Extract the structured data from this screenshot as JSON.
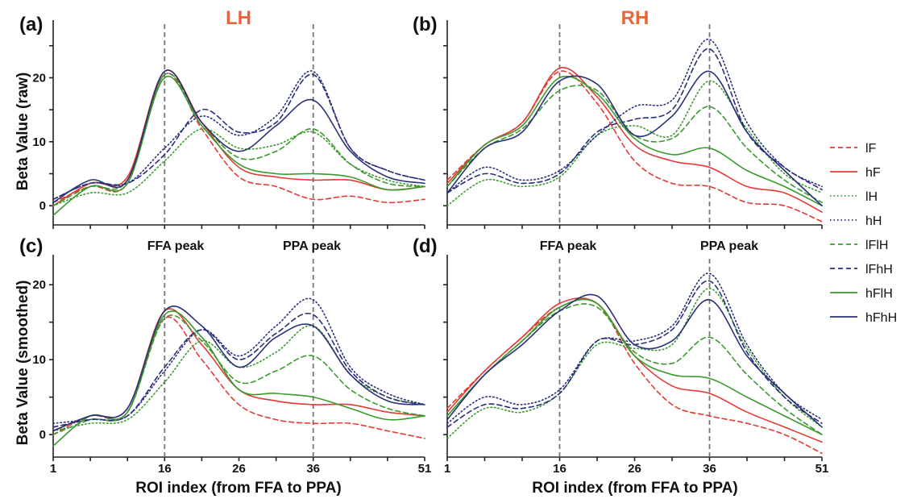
{
  "colors": {
    "hemisphere": "#e8663a",
    "red": "#e53935",
    "green": "#3a9a2e",
    "navy": "#2a2f7a",
    "peak_line": "#777777"
  },
  "hemispheres": {
    "left": "LH",
    "right": "RH"
  },
  "ylabels": {
    "raw": "Beta Value (raw)",
    "smoothed": "Beta Value (smoothed)"
  },
  "xlabel": "ROI index (from FFA to PPA)",
  "peak_labels": {
    "ffa": "FFA peak",
    "ppa": "PPA peak"
  },
  "legend": [
    {
      "name": "lF",
      "color": "#e53935",
      "dash": "6 4"
    },
    {
      "name": "hF",
      "color": "#e53935",
      "dash": ""
    },
    {
      "name": "lH",
      "color": "#3a9a2e",
      "dash": "1.5 3"
    },
    {
      "name": "hH",
      "color": "#2a2f7a",
      "dash": "1.5 3"
    },
    {
      "name": "lFlH",
      "color": "#3a9a2e",
      "dash": "6 4"
    },
    {
      "name": "lFhH",
      "color": "#2a2f7a",
      "dash": "6 4"
    },
    {
      "name": "hFlH",
      "color": "#3a9a2e",
      "dash": ""
    },
    {
      "name": "hFhH",
      "color": "#2a2f7a",
      "dash": ""
    }
  ],
  "chart_data": [
    {
      "type": "line",
      "panel": "(a)",
      "hemisphere": "LH",
      "ylabel": "Beta Value (raw)",
      "x": [
        1,
        6,
        11,
        16,
        21,
        26,
        31,
        36,
        41,
        46,
        51
      ],
      "xticks": [],
      "yticks": [
        0,
        10,
        20
      ],
      "ylim": [
        -3,
        29
      ],
      "xlim": [
        1,
        51
      ],
      "peaks": [
        16,
        36
      ],
      "series": [
        {
          "name": "lF",
          "values": [
            0.5,
            3.0,
            3.5,
            20.5,
            12.0,
            4.5,
            3.0,
            1.0,
            1.5,
            0.5,
            1.0
          ]
        },
        {
          "name": "hF",
          "values": [
            0.0,
            3.5,
            4.5,
            21.0,
            13.0,
            6.0,
            4.5,
            4.0,
            4.0,
            2.5,
            3.0
          ]
        },
        {
          "name": "lH",
          "values": [
            0.0,
            2.0,
            2.0,
            7.0,
            12.0,
            9.0,
            9.5,
            11.5,
            6.5,
            4.0,
            3.0
          ]
        },
        {
          "name": "hH",
          "values": [
            1.0,
            3.5,
            3.5,
            9.0,
            14.0,
            11.0,
            14.0,
            21.0,
            9.0,
            5.5,
            4.0
          ]
        },
        {
          "name": "lFlH",
          "values": [
            0.0,
            3.0,
            4.0,
            20.5,
            13.0,
            7.5,
            8.5,
            12.0,
            6.5,
            3.5,
            3.0
          ]
        },
        {
          "name": "lFhH",
          "values": [
            1.0,
            3.5,
            3.5,
            8.0,
            15.0,
            11.5,
            13.0,
            20.5,
            9.0,
            5.5,
            4.0
          ]
        },
        {
          "name": "hFlH",
          "values": [
            -1.5,
            3.0,
            3.5,
            20.0,
            12.5,
            6.5,
            5.0,
            5.0,
            4.5,
            2.5,
            3.0
          ]
        },
        {
          "name": "hFhH",
          "values": [
            0.5,
            4.0,
            4.0,
            21.0,
            13.0,
            8.5,
            12.5,
            16.5,
            8.5,
            4.5,
            3.5
          ]
        }
      ]
    },
    {
      "type": "line",
      "panel": "(b)",
      "hemisphere": "RH",
      "ylabel": "",
      "x": [
        1,
        6,
        11,
        16,
        21,
        26,
        31,
        36,
        41,
        46,
        51
      ],
      "xticks": [],
      "yticks": [],
      "ylim": [
        -3,
        29
      ],
      "xlim": [
        1,
        51
      ],
      "peaks": [
        16,
        36
      ],
      "series": [
        {
          "name": "lF",
          "values": [
            4.0,
            9.5,
            13.0,
            21.0,
            16.0,
            7.0,
            3.5,
            3.0,
            0.5,
            0.0,
            -2.5
          ]
        },
        {
          "name": "hF",
          "values": [
            3.5,
            9.5,
            13.0,
            21.5,
            17.0,
            9.5,
            7.0,
            6.0,
            3.0,
            2.0,
            -1.0
          ]
        },
        {
          "name": "lH",
          "values": [
            0.0,
            4.0,
            3.0,
            4.5,
            11.0,
            12.5,
            11.0,
            19.5,
            12.0,
            5.0,
            2.0
          ]
        },
        {
          "name": "hH",
          "values": [
            2.0,
            6.0,
            4.0,
            5.5,
            11.0,
            15.5,
            16.5,
            26.0,
            13.0,
            6.0,
            3.0
          ]
        },
        {
          "name": "lFlH",
          "values": [
            3.0,
            9.0,
            12.0,
            18.0,
            18.0,
            11.0,
            10.5,
            15.5,
            9.0,
            4.0,
            0.5
          ]
        },
        {
          "name": "lFhH",
          "values": [
            2.0,
            5.0,
            3.5,
            5.0,
            11.5,
            13.5,
            15.0,
            24.5,
            11.5,
            6.0,
            2.5
          ]
        },
        {
          "name": "hFlH",
          "values": [
            3.0,
            9.5,
            12.5,
            20.0,
            17.5,
            10.5,
            8.0,
            9.0,
            5.5,
            3.0,
            0.0
          ]
        },
        {
          "name": "hFhH",
          "values": [
            2.0,
            9.0,
            11.5,
            19.5,
            19.0,
            11.0,
            14.0,
            21.0,
            11.5,
            5.5,
            0.0
          ]
        }
      ]
    },
    {
      "type": "line",
      "panel": "(c)",
      "hemisphere": "LH",
      "ylabel": "Beta Value (smoothed)",
      "x": [
        1,
        6,
        11,
        16,
        21,
        26,
        31,
        36,
        41,
        46,
        51
      ],
      "xticks": [
        "1",
        "16",
        "26",
        "36",
        "51"
      ],
      "yticks": [
        0,
        10,
        20
      ],
      "ylim": [
        -3,
        24
      ],
      "xlim": [
        1,
        51
      ],
      "peaks": [
        16,
        36
      ],
      "series": [
        {
          "name": "lF",
          "values": [
            0.0,
            2.5,
            3.0,
            15.5,
            10.0,
            4.0,
            2.0,
            1.5,
            1.5,
            0.5,
            -0.5
          ]
        },
        {
          "name": "hF",
          "values": [
            0.5,
            2.5,
            3.5,
            16.5,
            12.0,
            6.0,
            4.5,
            4.0,
            4.0,
            3.0,
            2.5
          ]
        },
        {
          "name": "lH",
          "values": [
            0.5,
            1.5,
            2.0,
            7.0,
            12.5,
            9.0,
            11.0,
            14.5,
            8.0,
            5.0,
            4.0
          ]
        },
        {
          "name": "hH",
          "values": [
            1.5,
            2.0,
            2.5,
            8.5,
            14.0,
            10.5,
            14.5,
            18.0,
            9.0,
            5.5,
            4.0
          ]
        },
        {
          "name": "lFlH",
          "values": [
            0.0,
            2.0,
            3.0,
            15.5,
            12.5,
            7.0,
            8.5,
            10.5,
            6.0,
            3.5,
            2.5
          ]
        },
        {
          "name": "lFhH",
          "values": [
            1.0,
            2.0,
            2.5,
            9.0,
            14.0,
            10.0,
            13.5,
            16.0,
            8.5,
            5.0,
            4.0
          ]
        },
        {
          "name": "hFlH",
          "values": [
            -1.5,
            2.5,
            3.0,
            16.0,
            13.0,
            6.0,
            5.5,
            5.0,
            3.5,
            2.0,
            2.5
          ]
        },
        {
          "name": "hFhH",
          "values": [
            0.5,
            2.5,
            3.5,
            16.5,
            14.5,
            9.0,
            13.0,
            14.5,
            8.0,
            4.5,
            4.0
          ]
        }
      ]
    },
    {
      "type": "line",
      "panel": "(d)",
      "hemisphere": "RH",
      "ylabel": "",
      "x": [
        1,
        6,
        11,
        16,
        21,
        26,
        31,
        36,
        41,
        46,
        51
      ],
      "xticks": [
        "1",
        "16",
        "26",
        "36",
        "51"
      ],
      "yticks": [],
      "ylim": [
        -3,
        24
      ],
      "xlim": [
        1,
        51
      ],
      "peaks": [
        16,
        36
      ],
      "series": [
        {
          "name": "lF",
          "values": [
            3.5,
            8.5,
            13.0,
            17.0,
            17.5,
            9.5,
            4.0,
            2.5,
            1.5,
            0.0,
            -2.5
          ]
        },
        {
          "name": "hF",
          "values": [
            3.0,
            8.5,
            13.0,
            17.5,
            17.5,
            10.5,
            6.5,
            5.5,
            3.0,
            1.0,
            -1.0
          ]
        },
        {
          "name": "lH",
          "values": [
            -0.5,
            3.5,
            3.0,
            5.5,
            12.0,
            11.5,
            12.0,
            19.5,
            11.5,
            5.0,
            1.0
          ]
        },
        {
          "name": "hH",
          "values": [
            1.5,
            5.0,
            4.0,
            6.0,
            12.5,
            12.5,
            14.5,
            21.5,
            12.0,
            5.5,
            2.0
          ]
        },
        {
          "name": "lFlH",
          "values": [
            2.5,
            8.0,
            12.5,
            16.5,
            17.0,
            11.0,
            9.5,
            13.0,
            8.0,
            3.5,
            0.0
          ]
        },
        {
          "name": "lFhH",
          "values": [
            1.0,
            4.0,
            3.5,
            5.5,
            12.5,
            12.0,
            14.0,
            20.5,
            11.0,
            5.0,
            1.5
          ]
        },
        {
          "name": "hFlH",
          "values": [
            2.5,
            8.0,
            12.5,
            17.0,
            17.5,
            10.5,
            8.0,
            7.5,
            5.0,
            2.5,
            0.0
          ]
        },
        {
          "name": "hFhH",
          "values": [
            2.0,
            8.0,
            12.0,
            16.5,
            18.5,
            12.0,
            12.5,
            18.0,
            10.5,
            5.5,
            1.0
          ]
        }
      ]
    }
  ]
}
